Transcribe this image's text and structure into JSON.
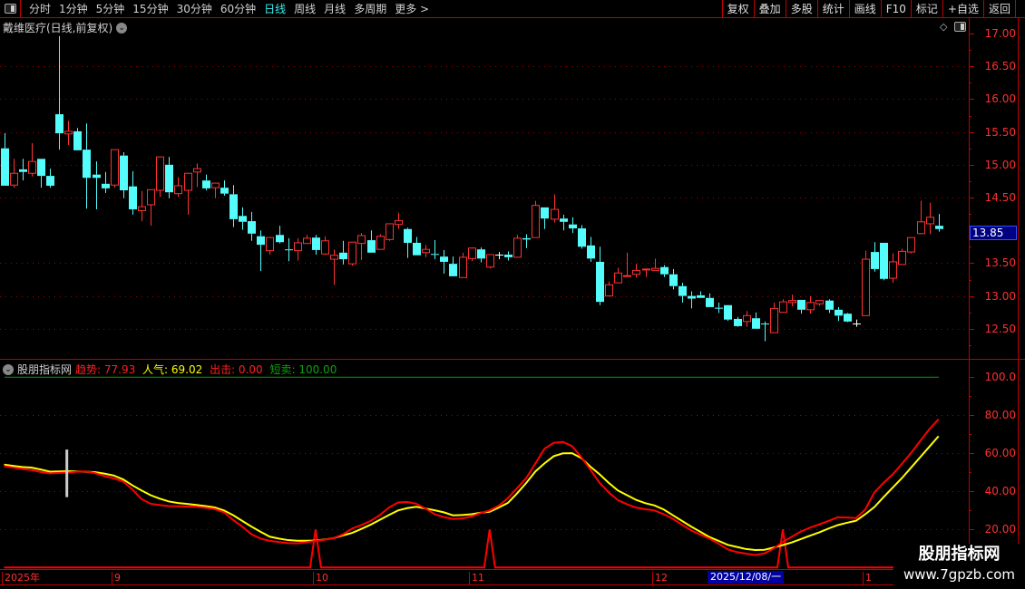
{
  "topbar": {
    "periods": [
      "分时",
      "1分钟",
      "5分钟",
      "15分钟",
      "30分钟",
      "60分钟",
      "日线",
      "周线",
      "月线",
      "多周期",
      "更多 >"
    ],
    "active_period": "日线",
    "tools": [
      "复权",
      "叠加",
      "多股",
      "统计",
      "画线",
      "F10",
      "标记",
      "+自选",
      "返回"
    ]
  },
  "stock_title": "戴维医疗(日线,前复权)",
  "indicator": {
    "name": "股朋指标网",
    "values": [
      {
        "label": "趋势:",
        "value": "77.93",
        "color": "#ff2020"
      },
      {
        "label": "人气:",
        "value": "69.02",
        "color": "#ffff00"
      },
      {
        "label": "出击:",
        "value": "0.00",
        "color": "#ff2020"
      },
      {
        "label": "短卖:",
        "value": "100.00",
        "color": "#10a010"
      }
    ]
  },
  "price_axis": {
    "ticks": [
      "17.00",
      "16.50",
      "16.00",
      "15.50",
      "15.00",
      "14.50",
      "13.50",
      "13.00",
      "12.50"
    ],
    "current": "13.85"
  },
  "indicator_axis": {
    "ticks": [
      "100.0",
      "80.00",
      "60.00",
      "40.00",
      "20.00"
    ]
  },
  "date_axis": {
    "labels": [
      {
        "text": "2025年",
        "index": 0
      },
      {
        "text": "9",
        "index": 12
      },
      {
        "text": "10",
        "index": 34
      },
      {
        "text": "11",
        "index": 51
      },
      {
        "text": "12",
        "index": 71
      },
      {
        "text": "1",
        "index": 94
      }
    ],
    "highlight": {
      "text": "2025/12/08/一",
      "index": 77
    }
  },
  "watermark": {
    "title": "股朋指标网",
    "url": "www.7gpzb.com"
  },
  "colors": {
    "up": "#ff3232",
    "down": "#54fcfc",
    "doji": "#ffffff",
    "trend": "#ff0000",
    "popularity": "#ffff00",
    "short_sell": "#00a000",
    "attack": "#ff0000"
  },
  "icons": {
    "diamond": "diamond-icon",
    "toggle": "panel-toggle-icon",
    "dropdown": "chevron-down-icon"
  },
  "chart_data": [
    {
      "type": "candlestick",
      "title": "戴维医疗(日线,前复权)",
      "ylim": [
        12.2,
        17.2
      ],
      "grid": true,
      "ohlc": [
        [
          15.25,
          15.48,
          14.68,
          14.68
        ],
        [
          14.69,
          15.09,
          14.65,
          14.87
        ],
        [
          14.93,
          15.09,
          14.76,
          14.89
        ],
        [
          14.87,
          15.33,
          14.82,
          15.05
        ],
        [
          15.09,
          15.09,
          14.65,
          14.83
        ],
        [
          14.83,
          14.94,
          14.65,
          14.68
        ],
        [
          15.77,
          16.96,
          15.23,
          15.48
        ],
        [
          15.47,
          15.67,
          15.3,
          15.51
        ],
        [
          15.51,
          15.56,
          15.22,
          15.22
        ],
        [
          15.23,
          15.63,
          14.33,
          14.8
        ],
        [
          14.85,
          15.05,
          14.32,
          14.8
        ],
        [
          14.71,
          14.89,
          14.57,
          14.64
        ],
        [
          14.69,
          15.23,
          14.65,
          15.23
        ],
        [
          15.14,
          15.19,
          14.49,
          14.61
        ],
        [
          14.67,
          14.9,
          14.24,
          14.32
        ],
        [
          14.3,
          14.6,
          14.14,
          14.36
        ],
        [
          14.39,
          14.62,
          14.07,
          14.62
        ],
        [
          14.61,
          15.12,
          14.51,
          15.12
        ],
        [
          15.0,
          15.12,
          14.49,
          14.58
        ],
        [
          14.56,
          14.81,
          14.51,
          14.68
        ],
        [
          14.61,
          14.87,
          14.24,
          14.87
        ],
        [
          14.89,
          15.02,
          14.66,
          14.94
        ],
        [
          14.76,
          14.85,
          14.61,
          14.64
        ],
        [
          14.65,
          14.72,
          14.49,
          14.72
        ],
        [
          14.65,
          14.76,
          14.53,
          14.56
        ],
        [
          14.55,
          14.69,
          14.05,
          14.17
        ],
        [
          14.22,
          14.35,
          14.01,
          14.13
        ],
        [
          14.14,
          14.28,
          13.84,
          13.95
        ],
        [
          13.91,
          14.0,
          13.38,
          13.78
        ],
        [
          13.69,
          13.9,
          13.63,
          13.89
        ],
        [
          13.93,
          14.07,
          13.8,
          13.82
        ],
        [
          13.71,
          13.88,
          13.53,
          13.7
        ],
        [
          13.69,
          13.88,
          13.54,
          13.81
        ],
        [
          13.8,
          13.93,
          13.8,
          13.88
        ],
        [
          13.89,
          13.93,
          13.63,
          13.7
        ],
        [
          13.64,
          13.91,
          13.63,
          13.84
        ],
        [
          13.56,
          13.71,
          13.17,
          13.62
        ],
        [
          13.66,
          13.84,
          13.48,
          13.56
        ],
        [
          13.49,
          13.82,
          13.46,
          13.82
        ],
        [
          13.8,
          13.96,
          13.55,
          13.92
        ],
        [
          13.85,
          14.0,
          13.66,
          13.66
        ],
        [
          13.71,
          13.94,
          13.71,
          13.91
        ],
        [
          13.86,
          14.1,
          13.84,
          14.1
        ],
        [
          14.09,
          14.27,
          14.02,
          14.15
        ],
        [
          14.02,
          14.04,
          13.58,
          13.81
        ],
        [
          13.81,
          13.9,
          13.62,
          13.62
        ],
        [
          13.66,
          13.78,
          13.59,
          13.71
        ],
        [
          13.64,
          13.85,
          13.56,
          13.63
        ],
        [
          13.6,
          13.7,
          13.34,
          13.52
        ],
        [
          13.49,
          13.6,
          13.3,
          13.3
        ],
        [
          13.28,
          13.66,
          13.28,
          13.59
        ],
        [
          13.57,
          13.74,
          13.53,
          13.73
        ],
        [
          13.71,
          13.74,
          13.51,
          13.57
        ],
        [
          13.44,
          13.63,
          13.42,
          13.63
        ],
        [
          13.63,
          13.67,
          13.56,
          13.63
        ],
        [
          13.63,
          13.68,
          13.54,
          13.59
        ],
        [
          13.59,
          13.93,
          13.59,
          13.88
        ],
        [
          13.88,
          13.94,
          13.73,
          13.86
        ],
        [
          13.89,
          14.45,
          13.89,
          14.38
        ],
        [
          14.35,
          14.35,
          14.02,
          14.18
        ],
        [
          14.17,
          14.55,
          14.12,
          14.32
        ],
        [
          14.18,
          14.24,
          14.0,
          14.13
        ],
        [
          14.09,
          14.2,
          13.96,
          14.03
        ],
        [
          14.03,
          14.08,
          13.72,
          13.75
        ],
        [
          13.77,
          13.9,
          13.52,
          13.57
        ],
        [
          13.52,
          13.75,
          12.86,
          12.91
        ],
        [
          13.0,
          13.22,
          13.0,
          13.17
        ],
        [
          13.2,
          13.43,
          13.2,
          13.35
        ],
        [
          13.3,
          13.66,
          13.3,
          13.31
        ],
        [
          13.33,
          13.49,
          13.28,
          13.39
        ],
        [
          13.4,
          13.42,
          13.29,
          13.41
        ],
        [
          13.39,
          13.57,
          13.39,
          13.42
        ],
        [
          13.44,
          13.47,
          13.29,
          13.33
        ],
        [
          13.33,
          13.41,
          13.1,
          13.15
        ],
        [
          13.15,
          13.2,
          12.9,
          13.0
        ],
        [
          13.0,
          13.07,
          12.81,
          12.96
        ],
        [
          13.01,
          13.07,
          12.97,
          12.97
        ],
        [
          12.97,
          13.04,
          12.83,
          12.83
        ],
        [
          12.82,
          12.9,
          12.74,
          12.81
        ],
        [
          12.86,
          12.86,
          12.62,
          12.64
        ],
        [
          12.65,
          12.68,
          12.53,
          12.54
        ],
        [
          12.61,
          12.77,
          12.53,
          12.7
        ],
        [
          12.66,
          12.75,
          12.5,
          12.5
        ],
        [
          12.58,
          12.61,
          12.31,
          12.57
        ],
        [
          12.44,
          12.9,
          12.44,
          12.81
        ],
        [
          12.75,
          12.95,
          12.75,
          12.91
        ],
        [
          12.9,
          13.02,
          12.84,
          12.93
        ],
        [
          12.94,
          12.94,
          12.73,
          12.79
        ],
        [
          12.79,
          13.0,
          12.73,
          12.9
        ],
        [
          12.88,
          12.94,
          12.85,
          12.93
        ],
        [
          12.93,
          12.95,
          12.74,
          12.79
        ],
        [
          12.79,
          12.83,
          12.62,
          12.7
        ],
        [
          12.73,
          12.74,
          12.6,
          12.61
        ],
        [
          12.58,
          12.64,
          12.53,
          12.58
        ],
        [
          12.7,
          13.69,
          12.7,
          13.56
        ],
        [
          13.67,
          13.82,
          13.37,
          13.41
        ],
        [
          13.81,
          13.81,
          13.24,
          13.26
        ],
        [
          13.27,
          13.65,
          13.2,
          13.52
        ],
        [
          13.48,
          13.72,
          13.48,
          13.68
        ],
        [
          13.67,
          13.89,
          13.65,
          13.89
        ],
        [
          13.95,
          14.45,
          13.94,
          14.13
        ],
        [
          14.1,
          14.42,
          13.94,
          14.2
        ],
        [
          14.07,
          14.25,
          13.98,
          14.02
        ]
      ]
    },
    {
      "type": "line",
      "title": "股朋指标网",
      "ylim": [
        0,
        100
      ],
      "grid": true,
      "series": [
        {
          "name": "趋势",
          "values": [
            53.3,
            52.5,
            51.8,
            51.2,
            50.2,
            49.5,
            49.7,
            49.9,
            50.4,
            50.5,
            49.5,
            48,
            46.8,
            45.2,
            41,
            36,
            33.5,
            32.8,
            32.3,
            32.2,
            32,
            31.9,
            31.4,
            30.7,
            29,
            25,
            21.5,
            17.5,
            15.2,
            14,
            13.4,
            12.8,
            12.7,
            13.3,
            14,
            14.6,
            15.5,
            17.5,
            20.5,
            22.3,
            24.5,
            27.5,
            31.5,
            34.2,
            34.5,
            33.5,
            31,
            28,
            26.5,
            25.5,
            25.8,
            26.8,
            28.6,
            30,
            32.5,
            36.5,
            41.7,
            47,
            54.8,
            62.5,
            65.5,
            66,
            63.8,
            58,
            51.4,
            44.5,
            39.5,
            35.4,
            33.2,
            31.5,
            30.6,
            30,
            28,
            25.6,
            22.5,
            19.5,
            17.3,
            15.2,
            12.5,
            9.5,
            8.1,
            7.3,
            6.6,
            7.4,
            10,
            13.5,
            16.2,
            19,
            21,
            22.7,
            24.5,
            26.4,
            26.3,
            26,
            30.5,
            39.5,
            44.5,
            49,
            54.5,
            60.2,
            66.5,
            72.7,
            77.93
          ]
        },
        {
          "name": "人气",
          "values": [
            54.1,
            53.4,
            52.8,
            52.5,
            51.5,
            50.4,
            50.5,
            50.6,
            50.5,
            50.3,
            50.1,
            49.3,
            48.3,
            46.3,
            43.2,
            40.5,
            38,
            36.2,
            34.7,
            33.9,
            33.4,
            32.9,
            32.3,
            31.6,
            30,
            27.5,
            24.5,
            21.5,
            18.8,
            16.2,
            15.2,
            14.4,
            14.1,
            14.1,
            14.2,
            14.7,
            15.5,
            16.9,
            18.2,
            20.3,
            22.5,
            25,
            27.6,
            30,
            31.2,
            31.9,
            31,
            30.1,
            29,
            27.4,
            27.6,
            28,
            28.8,
            29.3,
            31.5,
            34,
            39,
            44.5,
            50.5,
            54.8,
            58.5,
            60,
            60.1,
            57.5,
            53,
            49,
            44.5,
            40.5,
            38,
            35.5,
            33.8,
            32.6,
            30.5,
            27.5,
            24.5,
            21.5,
            18.8,
            16,
            14,
            11.9,
            10.8,
            9.7,
            9.2,
            9.3,
            10.5,
            11.8,
            13.2,
            15,
            16.8,
            18.5,
            20.5,
            22.3,
            23.5,
            24.6,
            28,
            31.8,
            37,
            42,
            47,
            52.5,
            58,
            63.5,
            69.02
          ]
        },
        {
          "name": "出击",
          "spikes": [
            34,
            53,
            85
          ],
          "spike_value": 20,
          "base_value": 0
        },
        {
          "name": "短卖",
          "constant": 100
        }
      ],
      "marker": {
        "index": 7,
        "from": 37,
        "to": 62
      }
    }
  ]
}
